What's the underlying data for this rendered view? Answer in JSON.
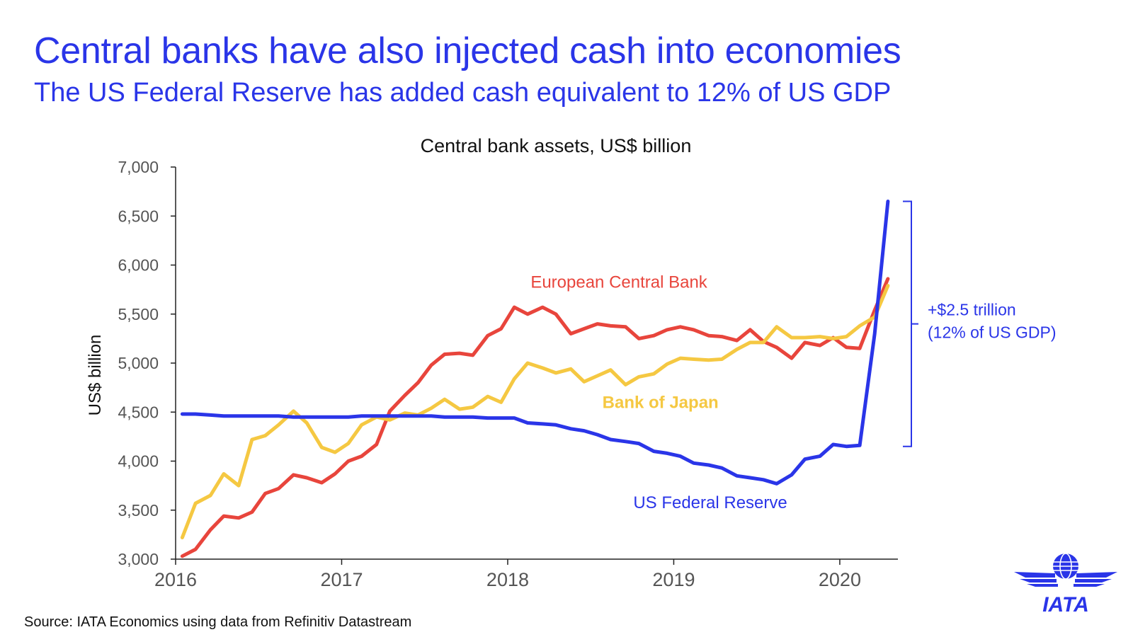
{
  "page": {
    "title": "Central banks have also injected cash into economies",
    "subtitle": "The US Federal Reserve has added cash equivalent to 12% of US GDP",
    "source": "Source: IATA Economics using data from Refinitiv Datastream",
    "logo": {
      "icon": "iata-globe-wings-icon",
      "text": "IATA",
      "color": "#2a35e8"
    }
  },
  "chart_data": {
    "type": "line",
    "title": "Central bank assets, US$ billion",
    "xlabel": "",
    "ylabel": "US$ billion",
    "xlim": [
      2016,
      2020.35
    ],
    "ylim": [
      3000,
      7000
    ],
    "yticks": [
      3000,
      3500,
      4000,
      4500,
      5000,
      5500,
      6000,
      6500,
      7000
    ],
    "ytick_labels": [
      "3,000",
      "3,500",
      "4,000",
      "4,500",
      "5,000",
      "5,500",
      "6,000",
      "6,500",
      "7,000"
    ],
    "xticks": [
      2016,
      2017,
      2018,
      2019,
      2020
    ],
    "xtick_labels": [
      "2016",
      "2017",
      "2018",
      "2019",
      "2020"
    ],
    "grid": false,
    "legend": "inline labels",
    "series": [
      {
        "name": "European Central Bank",
        "color": "#e8453c",
        "x": [
          2016.04,
          2016.12,
          2016.21,
          2016.29,
          2016.38,
          2016.46,
          2016.54,
          2016.62,
          2016.71,
          2016.79,
          2016.88,
          2016.96,
          2017.04,
          2017.12,
          2017.21,
          2017.29,
          2017.38,
          2017.46,
          2017.54,
          2017.62,
          2017.71,
          2017.79,
          2017.88,
          2017.96,
          2018.04,
          2018.12,
          2018.21,
          2018.29,
          2018.38,
          2018.46,
          2018.54,
          2018.62,
          2018.71,
          2018.79,
          2018.88,
          2018.96,
          2019.04,
          2019.12,
          2019.21,
          2019.29,
          2019.38,
          2019.46,
          2019.54,
          2019.62,
          2019.71,
          2019.79,
          2019.88,
          2019.96,
          2020.04,
          2020.12,
          2020.21,
          2020.29
        ],
        "y": [
          3030,
          3100,
          3300,
          3440,
          3420,
          3480,
          3670,
          3720,
          3860,
          3830,
          3780,
          3870,
          4000,
          4050,
          4170,
          4510,
          4670,
          4800,
          4980,
          5090,
          5100,
          5080,
          5280,
          5350,
          5570,
          5500,
          5570,
          5500,
          5300,
          5350,
          5400,
          5380,
          5370,
          5250,
          5280,
          5340,
          5370,
          5340,
          5280,
          5270,
          5230,
          5340,
          5220,
          5160,
          5050,
          5210,
          5180,
          5260,
          5160,
          5150,
          5540,
          5860
        ]
      },
      {
        "name": "Bank of Japan",
        "color": "#f5c842",
        "x": [
          2016.04,
          2016.12,
          2016.21,
          2016.29,
          2016.38,
          2016.46,
          2016.54,
          2016.62,
          2016.71,
          2016.79,
          2016.88,
          2016.96,
          2017.04,
          2017.12,
          2017.21,
          2017.29,
          2017.38,
          2017.46,
          2017.54,
          2017.62,
          2017.71,
          2017.79,
          2017.88,
          2017.96,
          2018.04,
          2018.12,
          2018.21,
          2018.29,
          2018.38,
          2018.46,
          2018.54,
          2018.62,
          2018.71,
          2018.79,
          2018.88,
          2018.96,
          2019.04,
          2019.12,
          2019.21,
          2019.29,
          2019.38,
          2019.46,
          2019.54,
          2019.62,
          2019.71,
          2019.79,
          2019.88,
          2019.96,
          2020.04,
          2020.12,
          2020.21,
          2020.29
        ],
        "y": [
          3220,
          3570,
          3650,
          3870,
          3750,
          4220,
          4260,
          4370,
          4510,
          4390,
          4140,
          4090,
          4180,
          4370,
          4450,
          4420,
          4490,
          4470,
          4540,
          4630,
          4530,
          4550,
          4660,
          4600,
          4840,
          5000,
          4950,
          4900,
          4940,
          4810,
          4870,
          4930,
          4780,
          4860,
          4890,
          4990,
          5050,
          5040,
          5030,
          5040,
          5140,
          5210,
          5210,
          5370,
          5260,
          5260,
          5270,
          5250,
          5270,
          5380,
          5470,
          5790
        ]
      },
      {
        "name": "US Federal Reserve",
        "color": "#2a35e8",
        "x": [
          2016.04,
          2016.12,
          2016.21,
          2016.29,
          2016.38,
          2016.46,
          2016.54,
          2016.62,
          2016.71,
          2016.79,
          2016.88,
          2016.96,
          2017.04,
          2017.12,
          2017.21,
          2017.29,
          2017.38,
          2017.46,
          2017.54,
          2017.62,
          2017.71,
          2017.79,
          2017.88,
          2017.96,
          2018.04,
          2018.12,
          2018.21,
          2018.29,
          2018.38,
          2018.46,
          2018.54,
          2018.62,
          2018.71,
          2018.79,
          2018.88,
          2018.96,
          2019.04,
          2019.12,
          2019.21,
          2019.29,
          2019.38,
          2019.46,
          2019.54,
          2019.62,
          2019.71,
          2019.79,
          2019.88,
          2019.96,
          2020.04,
          2020.12,
          2020.21,
          2020.29
        ],
        "y": [
          4480,
          4480,
          4470,
          4460,
          4460,
          4460,
          4460,
          4460,
          4450,
          4450,
          4450,
          4450,
          4450,
          4460,
          4460,
          4460,
          4460,
          4460,
          4460,
          4450,
          4450,
          4450,
          4440,
          4440,
          4440,
          4390,
          4380,
          4370,
          4330,
          4310,
          4270,
          4220,
          4200,
          4180,
          4100,
          4080,
          4050,
          3980,
          3960,
          3930,
          3850,
          3830,
          3810,
          3770,
          3860,
          4020,
          4050,
          4170,
          4150,
          4160,
          5300,
          6650
        ]
      }
    ],
    "annotations": [
      {
        "text": "European Central Bank",
        "color": "#e8453c",
        "bold": false,
        "x": 2018.67,
        "y": 5770
      },
      {
        "text": "Bank of Japan",
        "color": "#f5c842",
        "bold": true,
        "x": 2018.92,
        "y": 4540
      },
      {
        "text": "US Federal Reserve",
        "color": "#2a35e8",
        "bold": false,
        "x": 2019.22,
        "y": 3520
      }
    ],
    "bracket": {
      "color": "#2a35e8",
      "y_range": [
        4150,
        6650
      ],
      "label_line1": "+$2.5 trillion",
      "label_line2": "(12% of US GDP)"
    }
  }
}
